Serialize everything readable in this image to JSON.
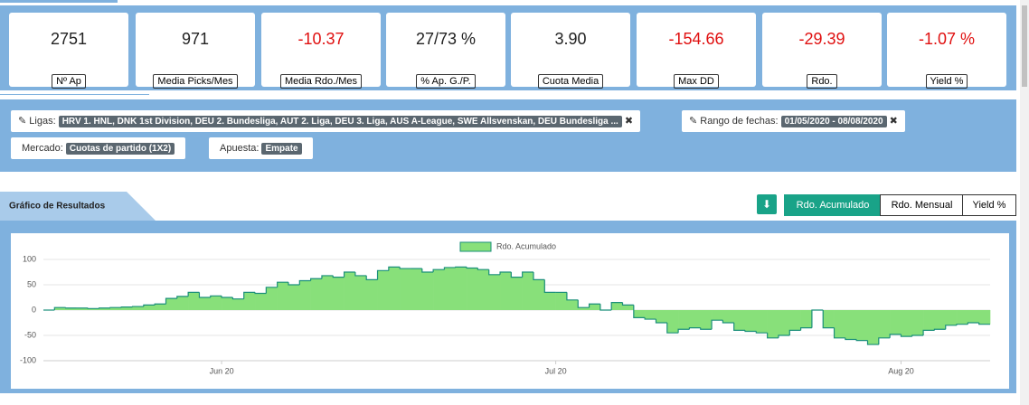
{
  "stats": [
    {
      "value": "2751",
      "label": "Nº Ap",
      "color": "#222222"
    },
    {
      "value": "971",
      "label": "Media Picks/Mes",
      "color": "#222222"
    },
    {
      "value": "-10.37",
      "label": "Media Rdo./Mes",
      "color": "#e01010"
    },
    {
      "value": "27/73 %",
      "label": "% Ap. G./P.",
      "color": "#222222"
    },
    {
      "value": "3.90",
      "label": "Cuota Media",
      "color": "#222222"
    },
    {
      "value": "-154.66",
      "label": "Max DD",
      "color": "#e01010"
    },
    {
      "value": "-29.39",
      "label": "Rdo.",
      "color": "#e01010"
    },
    {
      "value": "-1.07 %",
      "label": "Yield %",
      "color": "#e01010"
    }
  ],
  "filters": {
    "leagues_label": "Ligas:",
    "leagues_value": "HRV 1. HNL, DNK 1st Division, DEU 2. Bundesliga, AUT 2. Liga, DEU 3. Liga, AUS A-League, SWE Allsvenskan, DEU Bundesliga ...",
    "dates_label": "Rango de fechas:",
    "dates_value": "01/05/2020 - 08/08/2020",
    "market_label": "Mercado:",
    "market_value": "Cuotas de partido (1X2)",
    "bet_label": "Apuesta:",
    "bet_value": "Empate"
  },
  "section_title": "Gráfico de Resultados",
  "buttons": [
    "Rdo. Acumulado",
    "Rdo. Mensual",
    "Yield %"
  ],
  "chart_data": {
    "type": "step-area",
    "categories": [
      null,
      null,
      null,
      null,
      null,
      null,
      null,
      null,
      null,
      null,
      null,
      null,
      null,
      null,
      null,
      null,
      "Jun 20",
      null,
      null,
      null,
      null,
      null,
      null,
      null,
      null,
      null,
      null,
      null,
      null,
      null,
      null,
      null,
      null,
      null,
      null,
      null,
      null,
      null,
      null,
      null,
      null,
      null,
      null,
      null,
      null,
      null,
      "Jul 20",
      null,
      null,
      null,
      null,
      null,
      null,
      null,
      null,
      null,
      null,
      null,
      null,
      null,
      null,
      null,
      null,
      null,
      null,
      null,
      null,
      null,
      null,
      null,
      null,
      null,
      null,
      null,
      null,
      null,
      null,
      "Aug 20",
      null,
      null,
      null,
      null,
      null,
      null,
      null
    ],
    "series": [
      {
        "name": "Rdo. Acumulado",
        "color": "#88e07a",
        "line_color": "#1a8f7a",
        "values": [
          0,
          5,
          4,
          4,
          3,
          4,
          5,
          6,
          7,
          10,
          12,
          23,
          27,
          35,
          25,
          28,
          25,
          22,
          35,
          33,
          45,
          55,
          50,
          58,
          62,
          68,
          65,
          75,
          68,
          60,
          78,
          85,
          82,
          82,
          75,
          80,
          84,
          85,
          83,
          80,
          70,
          75,
          65,
          75,
          60,
          35,
          35,
          20,
          5,
          12,
          0,
          15,
          10,
          -15,
          -18,
          -25,
          -45,
          -38,
          -35,
          -38,
          -20,
          -25,
          -40,
          -42,
          -45,
          -55,
          -50,
          -40,
          -35,
          0,
          -35,
          -55,
          -58,
          -60,
          -68,
          -55,
          -48,
          -52,
          -50,
          -40,
          -38,
          -30,
          -28,
          -25,
          -28
        ]
      }
    ],
    "ylim": [
      -100,
      100
    ],
    "yticks": [
      -100,
      -50,
      0,
      50,
      100
    ],
    "grid": true
  }
}
